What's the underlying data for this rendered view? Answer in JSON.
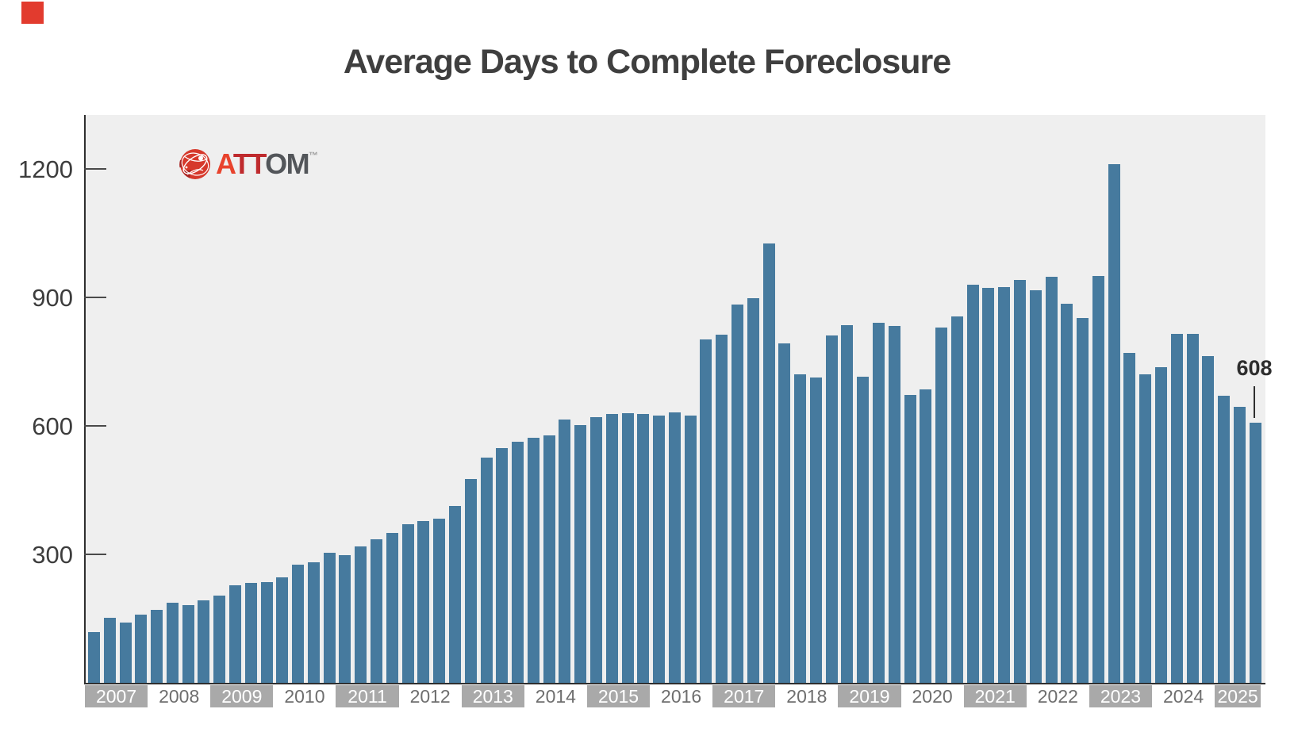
{
  "title": "Average Days to Complete Foreclosure",
  "logo": {
    "a": "A",
    "tt": "TT",
    "om": "OM",
    "tm": "™"
  },
  "y_axis": {
    "ticks": [
      {
        "label": "1200",
        "value": 1200
      },
      {
        "label": "900",
        "value": 900
      },
      {
        "label": "600",
        "value": 600
      },
      {
        "label": "300",
        "value": 300
      }
    ]
  },
  "annotation": {
    "value": "608"
  },
  "colors": {
    "bar": "#467a9e",
    "plot_background": "#efefef",
    "year_band": "#a9a9a9",
    "accent_red": "#e23b2e",
    "logo_red": "#e8432d",
    "logo_dark_red": "#bf2a2d",
    "logo_gray": "#53565a"
  },
  "chart_data": {
    "type": "bar",
    "title": "Average Days to Complete Foreclosure",
    "unit": "days",
    "ylabel": "",
    "xlabel": "",
    "ylim": [
      0,
      1326
    ],
    "yticks": [
      300,
      600,
      900,
      1200
    ],
    "grid": false,
    "legend": "none",
    "annotation_last_bar": 608,
    "years": [
      {
        "year": "2007",
        "values": [
          118,
          152,
          140,
          159
        ]
      },
      {
        "year": "2008",
        "values": [
          171,
          188,
          181,
          193
        ]
      },
      {
        "year": "2009",
        "values": [
          204,
          228,
          234,
          236
        ]
      },
      {
        "year": "2010",
        "values": [
          247,
          277,
          282,
          303
        ]
      },
      {
        "year": "2011",
        "values": [
          299,
          318,
          336,
          350
        ]
      },
      {
        "year": "2012",
        "values": [
          370,
          378,
          383,
          414
        ]
      },
      {
        "year": "2013",
        "values": [
          477,
          527,
          548,
          564
        ]
      },
      {
        "year": "2014",
        "values": [
          572,
          578,
          616,
          602
        ]
      },
      {
        "year": "2015",
        "values": [
          620,
          629,
          630,
          629
        ]
      },
      {
        "year": "2016",
        "values": [
          625,
          631,
          625,
          803
        ]
      },
      {
        "year": "2017",
        "values": [
          814,
          883,
          899,
          1027
        ]
      },
      {
        "year": "2018",
        "values": [
          793,
          720,
          713,
          811
        ]
      },
      {
        "year": "2019",
        "values": [
          835,
          716,
          841,
          833
        ]
      },
      {
        "year": "2020",
        "values": [
          673,
          685,
          830,
          856
        ]
      },
      {
        "year": "2021",
        "values": [
          930,
          922,
          924,
          941
        ]
      },
      {
        "year": "2022",
        "values": [
          917,
          948,
          885,
          852
        ]
      },
      {
        "year": "2023",
        "values": [
          950,
          1212,
          770,
          720
        ]
      },
      {
        "year": "2024",
        "values": [
          737,
          815,
          815,
          763
        ]
      },
      {
        "year": "2025",
        "values": [
          671,
          645,
          608
        ]
      }
    ]
  }
}
